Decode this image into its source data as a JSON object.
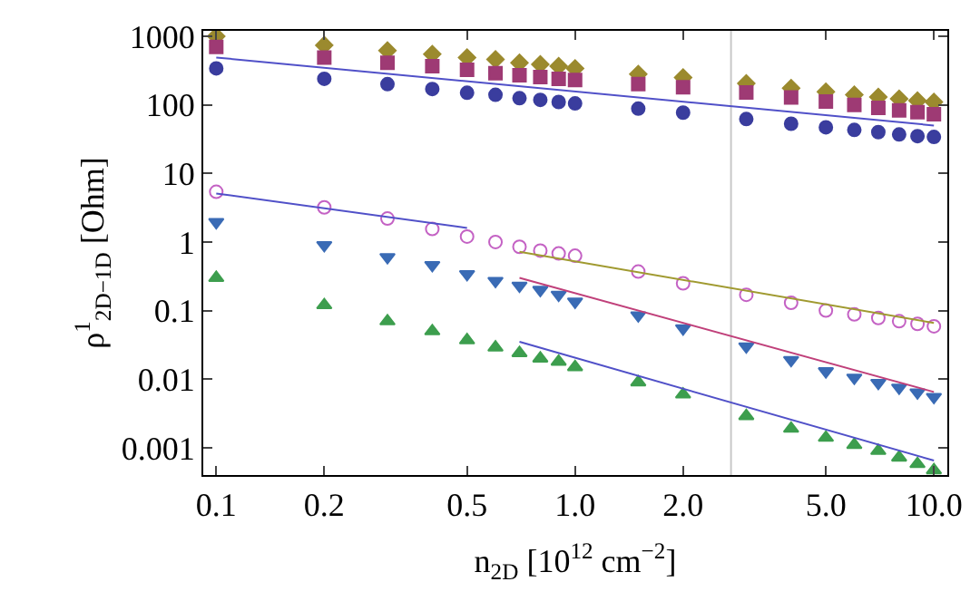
{
  "chart_data": {
    "type": "scatter",
    "xlabel": "n$_{2D}$ [10$^{12}$ cm$^{−2}$]",
    "ylabel": "ρ$^{1}$$_{2D−1D}$ [Ohm]",
    "log": "xy",
    "grid": false,
    "legend": false,
    "x": [
      0.1,
      0.2,
      0.3,
      0.4,
      0.5,
      0.6,
      0.7,
      0.8,
      0.9,
      1.0,
      1.5,
      2,
      3,
      4,
      5,
      6,
      7,
      8,
      9,
      10
    ],
    "xlim": [
      0.092,
      10.9
    ],
    "ylim": [
      0.0004,
      1200
    ],
    "xticks": [
      0.1,
      0.2,
      0.5,
      {
        "value": 1,
        "label": "1.0"
      },
      {
        "value": 2,
        "label": "2.0"
      },
      {
        "value": 5,
        "label": "5.0"
      },
      {
        "value": 10,
        "label": "10.0"
      }
    ],
    "yticks": [
      1000,
      100,
      10,
      1,
      0.1,
      0.01,
      0.001
    ],
    "ref_lines": [
      {
        "axis": "x",
        "value": 2.72,
        "color": "#c8c8c8"
      }
    ],
    "series": [
      {
        "color": "#9b8a2e",
        "marker": "diamond",
        "values": [
          1000,
          740,
          620,
          550,
          490,
          460,
          410,
          390,
          365,
          340,
          280,
          250,
          205,
          175,
          155,
          140,
          130,
          122,
          115,
          110
        ]
      },
      {
        "color": "#9e3a74",
        "marker": "square",
        "values": [
          700,
          490,
          410,
          365,
          325,
          290,
          270,
          255,
          240,
          230,
          200,
          180,
          152,
          128,
          112,
          100,
          90,
          83,
          78,
          73
        ]
      },
      {
        "color": "#3a3d9e",
        "marker": "circle",
        "values": [
          340,
          240,
          200,
          170,
          150,
          140,
          125,
          118,
          110,
          105,
          88,
          77,
          62,
          53,
          47,
          43,
          40,
          37,
          35,
          34
        ]
      },
      {
        "color": "#c462c4",
        "marker": "circle-open",
        "values": [
          5.4,
          3.2,
          2.2,
          1.55,
          1.2,
          1.0,
          0.85,
          0.75,
          0.68,
          0.63,
          0.37,
          0.25,
          0.17,
          0.13,
          0.1,
          0.088,
          0.078,
          0.07,
          0.064,
          0.059
        ]
      },
      {
        "color": "#3a6bb5",
        "marker": "triangle-down",
        "values": [
          1.95,
          0.9,
          0.6,
          0.46,
          0.34,
          0.27,
          0.23,
          0.2,
          0.17,
          0.135,
          0.085,
          0.055,
          0.03,
          0.019,
          0.013,
          0.0105,
          0.0088,
          0.0075,
          0.0064,
          0.0055
        ]
      },
      {
        "color": "#3d9e4e",
        "marker": "triangle",
        "values": [
          0.3,
          0.12,
          0.07,
          0.05,
          0.037,
          0.029,
          0.024,
          0.02,
          0.018,
          0.015,
          0.009,
          0.006,
          0.0029,
          0.0019,
          0.0014,
          0.0011,
          0.0009,
          0.00072,
          0.00058,
          0.00047
        ]
      },
      {
        "type": "line",
        "color": "#5050c8",
        "x": [
          0.1,
          10
        ],
        "values": [
          490,
          50
        ]
      },
      {
        "type": "line",
        "color": "#5050c8",
        "x": [
          0.1,
          0.5
        ],
        "values": [
          5.1,
          1.6
        ]
      },
      {
        "type": "line",
        "color": "#a09a30",
        "x": [
          0.7,
          10
        ],
        "values": [
          0.72,
          0.066
        ]
      },
      {
        "type": "line",
        "color": "#c0407a",
        "x": [
          0.7,
          10
        ],
        "values": [
          0.3,
          0.0065
        ]
      },
      {
        "type": "line",
        "color": "#5050c8",
        "x": [
          0.7,
          10
        ],
        "values": [
          0.035,
          0.00065
        ]
      }
    ]
  }
}
